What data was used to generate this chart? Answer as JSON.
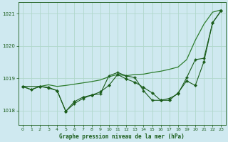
{
  "title": "Graphe pression niveau de la mer (hPa)",
  "background_color": "#cfe9f0",
  "grid_color": "#b0d8cc",
  "line_color_dark": "#1a5c1a",
  "line_color_light": "#2e7d2e",
  "xlim": [
    -0.5,
    23.5
  ],
  "ylim": [
    1017.55,
    1021.35
  ],
  "yticks": [
    1018,
    1019,
    1020,
    1021
  ],
  "xticks": [
    0,
    1,
    2,
    3,
    4,
    5,
    6,
    7,
    8,
    9,
    10,
    11,
    12,
    13,
    14,
    15,
    16,
    17,
    18,
    19,
    20,
    21,
    22,
    23
  ],
  "series1_x": [
    0,
    1,
    2,
    3,
    4,
    5,
    6,
    7,
    8,
    9,
    10,
    11,
    12,
    13,
    14,
    15,
    16,
    17,
    18,
    19,
    20,
    21,
    22,
    23
  ],
  "series1_y": [
    1018.75,
    1018.65,
    1018.75,
    1018.8,
    1018.75,
    1018.78,
    1018.82,
    1018.86,
    1018.9,
    1018.95,
    1019.05,
    1019.12,
    1019.08,
    1019.12,
    1019.13,
    1019.18,
    1019.22,
    1019.28,
    1019.35,
    1019.58,
    1020.18,
    1020.68,
    1021.05,
    1021.12
  ],
  "series2_x": [
    0,
    1,
    2,
    3,
    4,
    5,
    6,
    7,
    8,
    9,
    10,
    11,
    12,
    13,
    14,
    15,
    16,
    17,
    18,
    19,
    20,
    21,
    22,
    23
  ],
  "series2_y": [
    1018.75,
    1018.65,
    1018.75,
    1018.72,
    1018.62,
    1017.98,
    1018.28,
    1018.42,
    1018.48,
    1018.58,
    1018.78,
    1019.12,
    1018.98,
    1018.88,
    1018.72,
    1018.55,
    1018.32,
    1018.32,
    1018.55,
    1018.92,
    1018.78,
    1019.52,
    1020.72,
    1021.1
  ],
  "series3_x": [
    0,
    2,
    3,
    4,
    5,
    6,
    7,
    8,
    9,
    10,
    11,
    12,
    13,
    14,
    15,
    16,
    17,
    18,
    19,
    20,
    21,
    22,
    23
  ],
  "series3_y": [
    1018.75,
    1018.75,
    1018.7,
    1018.62,
    1017.98,
    1018.22,
    1018.38,
    1018.48,
    1018.52,
    1019.08,
    1019.18,
    1019.08,
    1019.02,
    1018.62,
    1018.32,
    1018.32,
    1018.38,
    1018.52,
    1019.02,
    1019.58,
    1019.62,
    1020.72,
    1021.1
  ]
}
